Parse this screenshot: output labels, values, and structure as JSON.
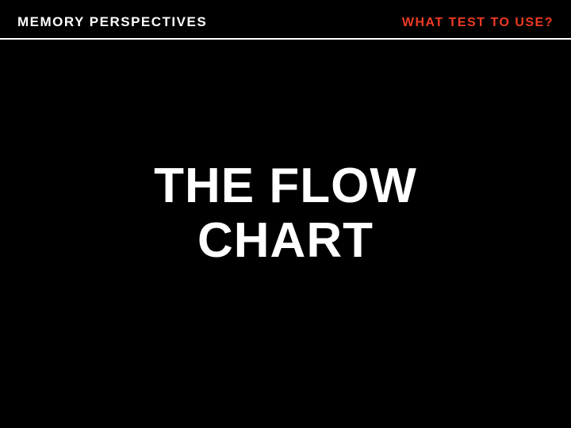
{
  "header": {
    "left_text": "MEMORY PERSPECTIVES",
    "right_text": "WHAT TEST TO USE?",
    "left_color": "#ffffff",
    "right_color": "#ef3a24",
    "underline_color": "#ffffff",
    "left_fontsize": 17,
    "right_fontsize": 16,
    "letter_spacing": 1.5
  },
  "main": {
    "title_line1": "THE FLOW",
    "title_line2": "CHART",
    "title_color": "#ffffff",
    "title_fontsize": 62
  },
  "background_color": "#000000"
}
